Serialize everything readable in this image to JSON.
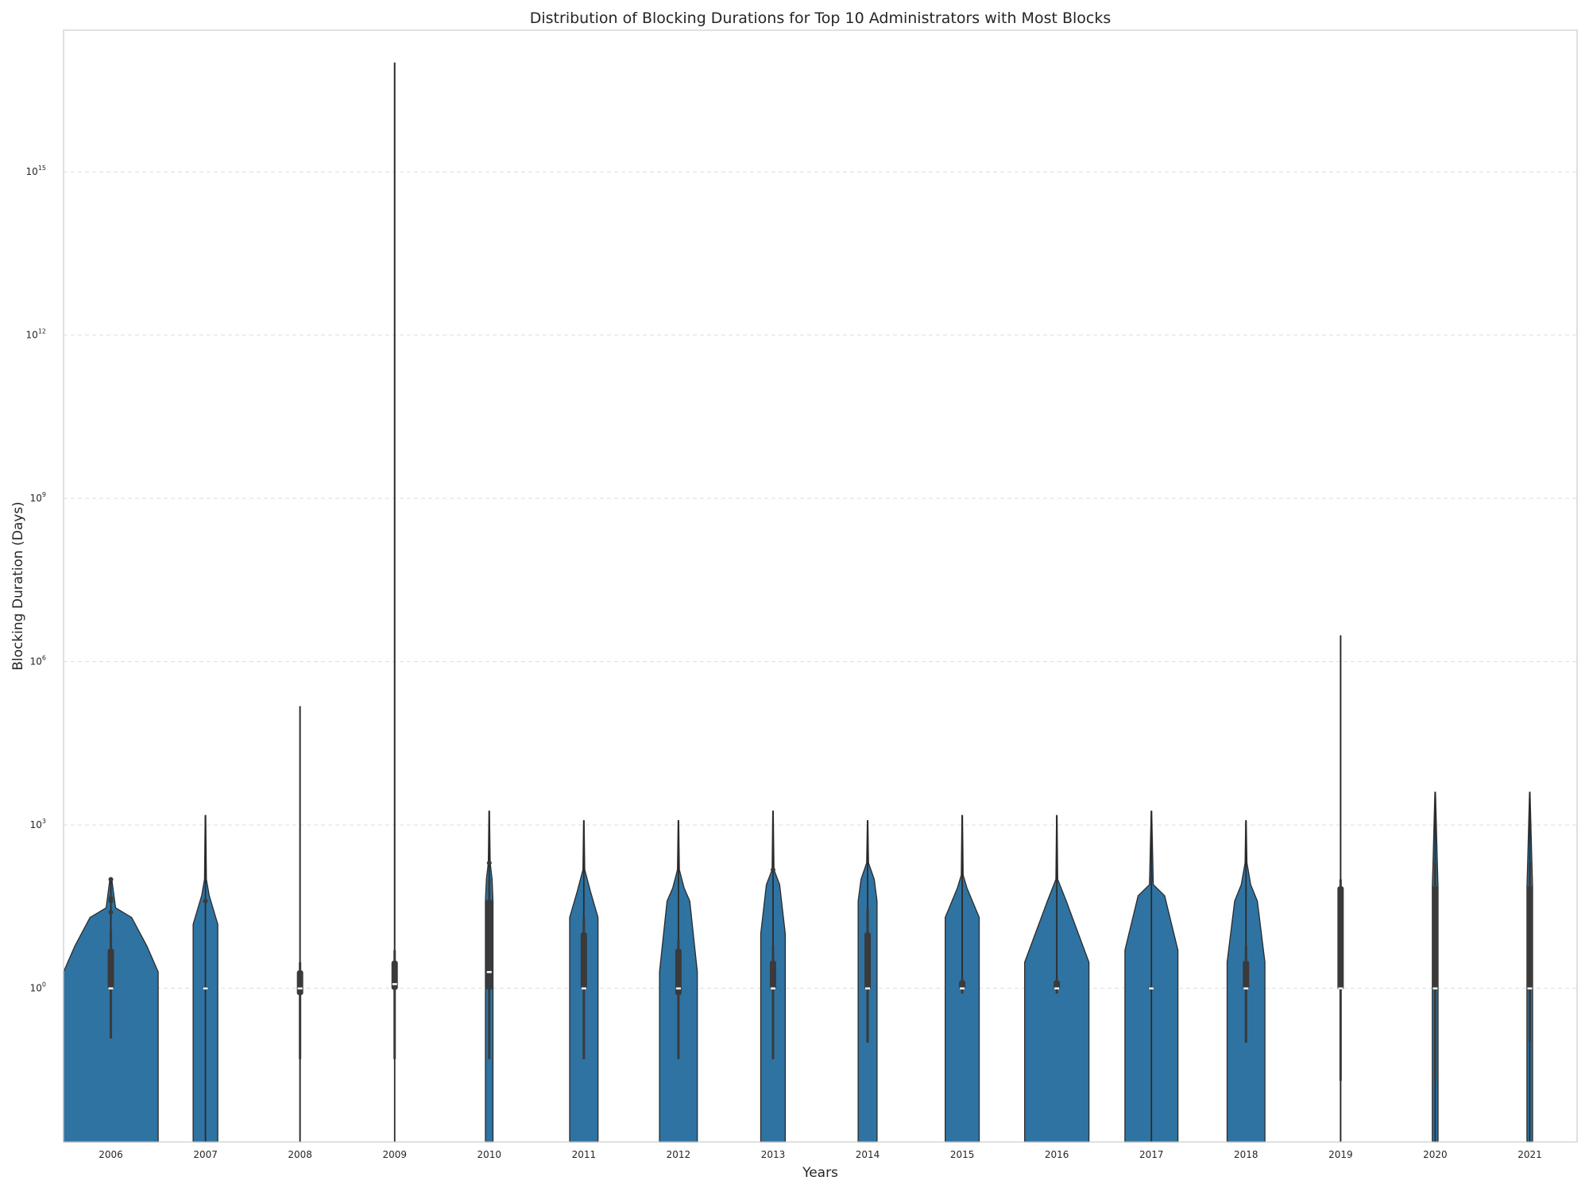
{
  "chart_data": {
    "type": "violin",
    "title": "Distribution of Blocking Durations for Top 10 Administrators with Most Blocks",
    "xlabel": "Years",
    "ylabel": "Blocking Duration (Days)",
    "yscale": "log",
    "ylim": [
      0.0015,
      4e+17
    ],
    "grid": "horizontal dashed",
    "violin_color": "#2f73a2",
    "yticks": [
      {
        "value": 1,
        "base": "10",
        "exp": "0"
      },
      {
        "value": 1000,
        "base": "10",
        "exp": "3"
      },
      {
        "value": 1000000,
        "base": "10",
        "exp": "6"
      },
      {
        "value": 1000000000,
        "base": "10",
        "exp": "9"
      },
      {
        "value": 1000000000000,
        "base": "10",
        "exp": "12"
      },
      {
        "value": 1000000000000000,
        "base": "10",
        "exp": "15"
      }
    ],
    "categories": [
      "2006",
      "2007",
      "2008",
      "2009",
      "2010",
      "2011",
      "2012",
      "2013",
      "2014",
      "2015",
      "2016",
      "2017",
      "2018",
      "2019",
      "2020",
      "2021"
    ],
    "series": [
      {
        "year": "2006",
        "min": 0.12,
        "max": 100,
        "q1": 1,
        "median": 1,
        "q3": 5,
        "whisker_low": 0.12,
        "whisker_high": 12,
        "profile": [
          [
            0.0015,
            0.5
          ],
          [
            2,
            0.5
          ],
          [
            6,
            0.38
          ],
          [
            20,
            0.22
          ],
          [
            30,
            0.05
          ],
          [
            100,
            0.01
          ]
        ],
        "outliers": [
          25,
          40,
          45,
          100
        ]
      },
      {
        "year": "2007",
        "min": 0.0015,
        "max": 1500,
        "q1": 1,
        "median": 1,
        "q3": 1,
        "whisker_low": 1,
        "whisker_high": 1,
        "profile": [
          [
            0.0015,
            0.13
          ],
          [
            15,
            0.13
          ],
          [
            50,
            0.04
          ],
          [
            100,
            0.01
          ],
          [
            1500,
            0.003
          ]
        ],
        "outliers": [
          40
        ]
      },
      {
        "year": "2008",
        "min": 0.0015,
        "max": 150000,
        "q1": 0.8,
        "median": 1,
        "q3": 2,
        "whisker_low": 0.05,
        "whisker_high": 3,
        "profile": [
          [
            0.0015,
            0.002
          ],
          [
            150000,
            0.002
          ]
        ],
        "outliers": []
      },
      {
        "year": "2009",
        "min": 0.05,
        "max": 1e+17,
        "q1": 1,
        "median": 1.2,
        "q3": 3,
        "whisker_low": 0.05,
        "whisker_high": 5,
        "profile": [
          [
            0.0015,
            0.002
          ],
          [
            1e+17,
            0.002
          ]
        ],
        "outliers": []
      },
      {
        "year": "2010",
        "min": 0.05,
        "max": 1800,
        "q1": 1,
        "median": 2,
        "q3": 40,
        "whisker_low": 0.05,
        "whisker_high": 100,
        "profile": [
          [
            0.0015,
            0.04
          ],
          [
            40,
            0.04
          ],
          [
            100,
            0.03
          ],
          [
            200,
            0.01
          ],
          [
            1800,
            0.003
          ]
        ],
        "outliers": [
          200
        ]
      },
      {
        "year": "2011",
        "min": 0.05,
        "max": 1200,
        "q1": 1,
        "median": 1,
        "q3": 10,
        "whisker_low": 0.05,
        "whisker_high": 20,
        "profile": [
          [
            0.0015,
            0.15
          ],
          [
            20,
            0.15
          ],
          [
            60,
            0.07
          ],
          [
            150,
            0.01
          ],
          [
            1200,
            0.003
          ]
        ],
        "outliers": []
      },
      {
        "year": "2012",
        "min": 0.05,
        "max": 1200,
        "q1": 0.8,
        "median": 1,
        "q3": 5,
        "whisker_low": 0.05,
        "whisker_high": 8,
        "profile": [
          [
            0.0015,
            0.2
          ],
          [
            2,
            0.2
          ],
          [
            40,
            0.12
          ],
          [
            70,
            0.06
          ],
          [
            150,
            0.01
          ],
          [
            1200,
            0.003
          ]
        ],
        "outliers": []
      },
      {
        "year": "2013",
        "min": 0.05,
        "max": 1800,
        "q1": 1,
        "median": 1,
        "q3": 3,
        "whisker_low": 0.05,
        "whisker_high": 6,
        "profile": [
          [
            0.0015,
            0.13
          ],
          [
            10,
            0.13
          ],
          [
            80,
            0.07
          ],
          [
            150,
            0.01
          ],
          [
            1800,
            0.003
          ]
        ],
        "outliers": [
          150
        ]
      },
      {
        "year": "2014",
        "min": 0.1,
        "max": 1200,
        "q1": 1,
        "median": 1,
        "q3": 10,
        "whisker_low": 0.1,
        "whisker_high": 30,
        "profile": [
          [
            0.0015,
            0.1
          ],
          [
            40,
            0.1
          ],
          [
            100,
            0.07
          ],
          [
            200,
            0.01
          ],
          [
            1200,
            0.003
          ]
        ],
        "outliers": []
      },
      {
        "year": "2015",
        "min": 0.8,
        "max": 1500,
        "q1": 1,
        "median": 1,
        "q3": 1.3,
        "whisker_low": 0.8,
        "whisker_high": 1.5,
        "profile": [
          [
            0.0015,
            0.18
          ],
          [
            20,
            0.18
          ],
          [
            70,
            0.05
          ],
          [
            120,
            0.01
          ],
          [
            1500,
            0.003
          ]
        ],
        "outliers": []
      },
      {
        "year": "2016",
        "min": 0.8,
        "max": 1500,
        "q1": 1,
        "median": 1,
        "q3": 1.3,
        "whisker_low": 0.8,
        "whisker_high": 1.5,
        "profile": [
          [
            0.0015,
            0.34
          ],
          [
            3,
            0.34
          ],
          [
            40,
            0.1
          ],
          [
            100,
            0.01
          ],
          [
            1500,
            0.003
          ]
        ],
        "outliers": []
      },
      {
        "year": "2017",
        "min": 0.0015,
        "max": 1800,
        "q1": 1,
        "median": 1,
        "q3": 1,
        "whisker_low": 1,
        "whisker_high": 1,
        "profile": [
          [
            0.0015,
            0.28
          ],
          [
            5,
            0.28
          ],
          [
            50,
            0.14
          ],
          [
            80,
            0.02
          ],
          [
            1800,
            0.003
          ]
        ],
        "outliers": [
          100
        ]
      },
      {
        "year": "2018",
        "min": 0.1,
        "max": 1200,
        "q1": 1,
        "median": 1,
        "q3": 3,
        "whisker_low": 0.1,
        "whisker_high": 6,
        "profile": [
          [
            0.0015,
            0.2
          ],
          [
            3,
            0.2
          ],
          [
            40,
            0.12
          ],
          [
            80,
            0.05
          ],
          [
            200,
            0.01
          ],
          [
            1200,
            0.003
          ]
        ],
        "outliers": []
      },
      {
        "year": "2019",
        "min": 0.0015,
        "max": 3000000,
        "q1": 1,
        "median": 1,
        "q3": 70,
        "whisker_low": 0.02,
        "whisker_high": 100,
        "profile": [
          [
            0.0015,
            0.002
          ],
          [
            3000000,
            0.002
          ]
        ],
        "outliers": []
      },
      {
        "year": "2020",
        "min": 0.0015,
        "max": 4000,
        "q1": 1,
        "median": 1,
        "q3": 70,
        "whisker_low": 0.02,
        "whisker_high": 200,
        "profile": [
          [
            0.0015,
            0.03
          ],
          [
            70,
            0.03
          ],
          [
            300,
            0.02
          ],
          [
            4000,
            0.003
          ]
        ],
        "outliers": []
      },
      {
        "year": "2021",
        "min": 0.0015,
        "max": 4000,
        "q1": 1,
        "median": 1,
        "q3": 70,
        "whisker_low": 0.1,
        "whisker_high": 200,
        "profile": [
          [
            0.0015,
            0.03
          ],
          [
            70,
            0.03
          ],
          [
            300,
            0.02
          ],
          [
            4000,
            0.003
          ]
        ],
        "outliers": []
      }
    ]
  }
}
